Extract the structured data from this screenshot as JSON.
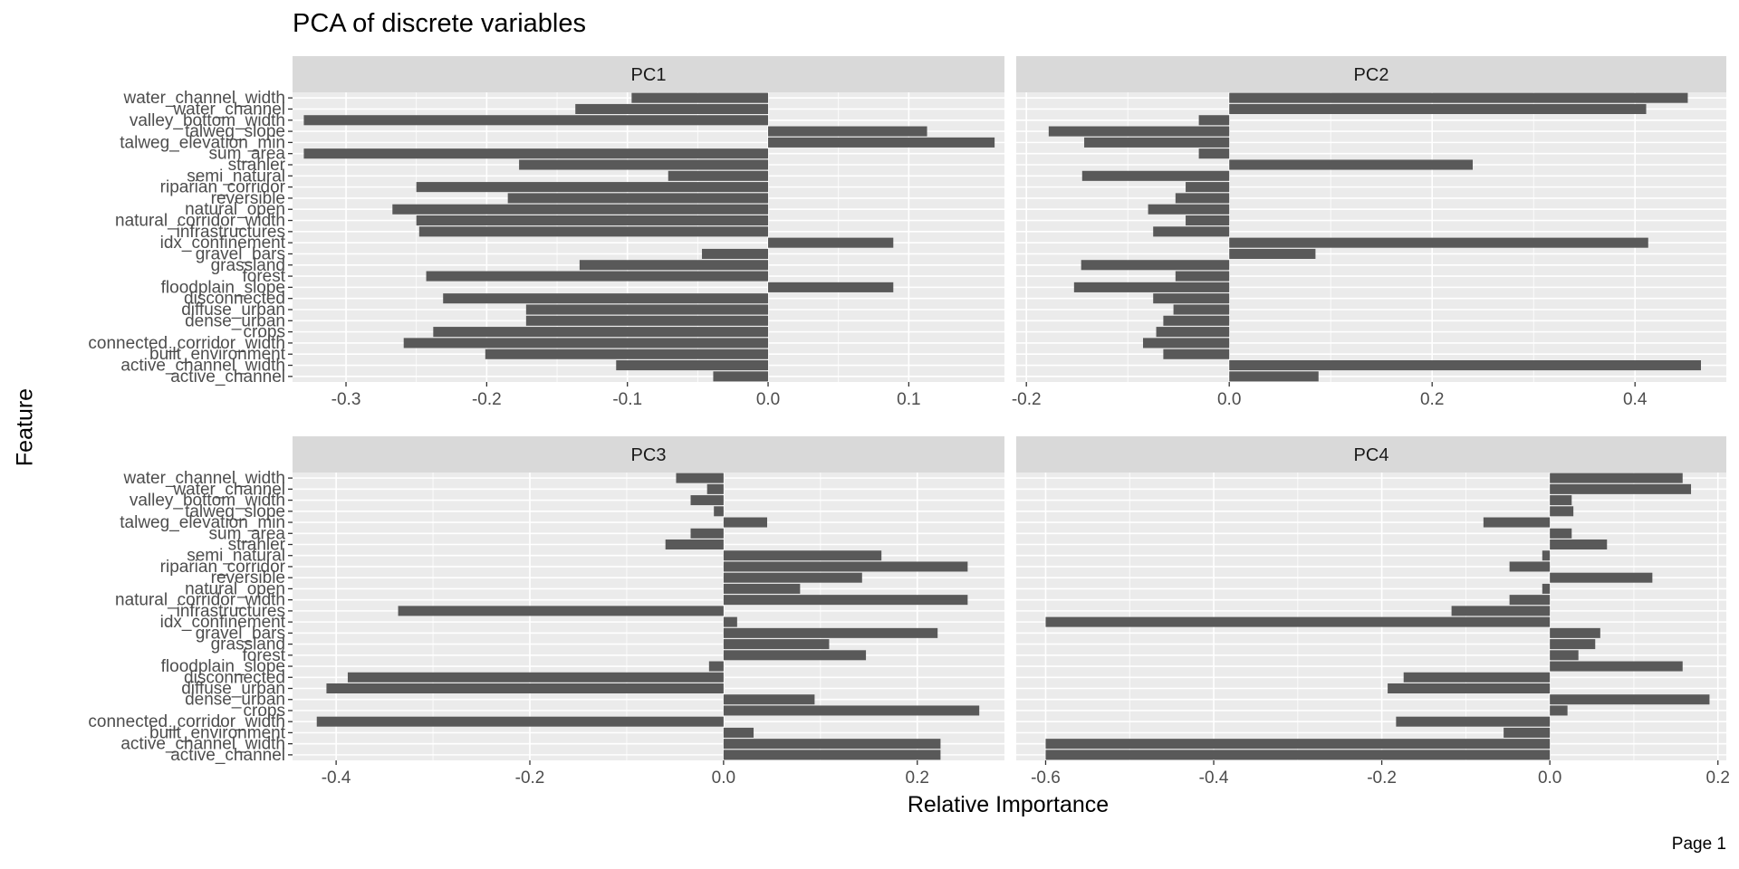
{
  "title": "PCA of discrete variables",
  "xlabel": "Relative Importance",
  "ylabel": "Feature",
  "footer": "Page 1",
  "colors": {
    "bar": "#595959",
    "panel": "#ebebeb",
    "strip": "#d9d9d9",
    "grid": "#ffffff",
    "tick_text": "#4d4d4d"
  },
  "chart_data": {
    "type": "bar",
    "orientation": "horizontal",
    "grid": true,
    "features": [
      "water_channel_width",
      "water_channel",
      "valley_bottom_width",
      "talweg_slope",
      "talweg_elevation_min",
      "sum_area",
      "strahler",
      "semi_natural",
      "riparian_corridor",
      "reversible",
      "natural_open",
      "natural_corridor_width",
      "infrastructures",
      "idx_confinement",
      "gravel_bars",
      "grassland",
      "forest",
      "floodplain_slope",
      "disconnected",
      "diffuse_urban",
      "dense_urban",
      "crops",
      "connected_corridor_width",
      "built_environment",
      "active_channel_width",
      "active_channel"
    ],
    "panels": [
      {
        "name": "PC1",
        "xlim": [
          -0.338,
          0.168
        ],
        "ticks": [
          -0.3,
          -0.2,
          -0.1,
          0.0,
          0.1
        ],
        "tick_labels": [
          "-0.3",
          "-0.2",
          "-0.1",
          "0.0",
          "0.1"
        ],
        "values": [
          -0.097,
          -0.137,
          -0.33,
          0.113,
          0.161,
          -0.33,
          -0.177,
          -0.071,
          -0.25,
          -0.185,
          -0.267,
          -0.25,
          -0.248,
          0.089,
          -0.047,
          -0.134,
          -0.243,
          0.089,
          -0.231,
          -0.172,
          -0.172,
          -0.238,
          -0.259,
          -0.201,
          -0.108,
          -0.039
        ]
      },
      {
        "name": "PC2",
        "xlim": [
          -0.21,
          0.49
        ],
        "ticks": [
          -0.2,
          0.0,
          0.2,
          0.4
        ],
        "tick_labels": [
          "-0.2",
          "0.0",
          "0.2",
          "0.4"
        ],
        "values": [
          0.452,
          0.411,
          -0.03,
          -0.178,
          -0.143,
          -0.03,
          0.24,
          -0.145,
          -0.043,
          -0.053,
          -0.08,
          -0.043,
          -0.075,
          0.413,
          0.085,
          -0.146,
          -0.053,
          -0.153,
          -0.075,
          -0.055,
          -0.065,
          -0.072,
          -0.085,
          -0.065,
          0.465,
          0.088
        ]
      },
      {
        "name": "PC3",
        "xlim": [
          -0.445,
          0.29
        ],
        "ticks": [
          -0.4,
          -0.2,
          0.0,
          0.2
        ],
        "tick_labels": [
          "-0.4",
          "-0.2",
          "0.0",
          "0.2"
        ],
        "values": [
          -0.049,
          -0.017,
          -0.034,
          -0.01,
          0.045,
          -0.034,
          -0.06,
          0.163,
          0.252,
          0.143,
          0.079,
          0.252,
          -0.336,
          0.014,
          0.221,
          0.109,
          0.147,
          -0.015,
          -0.388,
          -0.41,
          0.094,
          0.264,
          -0.42,
          0.031,
          0.224,
          0.224
        ]
      },
      {
        "name": "PC4",
        "xlim": [
          -0.635,
          0.21
        ],
        "ticks": [
          -0.6,
          -0.4,
          -0.2,
          0.0,
          0.2
        ],
        "tick_labels": [
          "-0.6",
          "-0.4",
          "-0.2",
          "0.0",
          "0.2"
        ],
        "values": [
          0.158,
          0.168,
          0.026,
          0.028,
          -0.079,
          0.026,
          0.068,
          -0.009,
          -0.048,
          0.122,
          -0.009,
          -0.048,
          -0.117,
          -0.6,
          0.06,
          0.054,
          0.034,
          0.158,
          -0.174,
          -0.193,
          0.19,
          0.021,
          -0.183,
          -0.055,
          -0.6,
          -0.6
        ]
      }
    ]
  }
}
